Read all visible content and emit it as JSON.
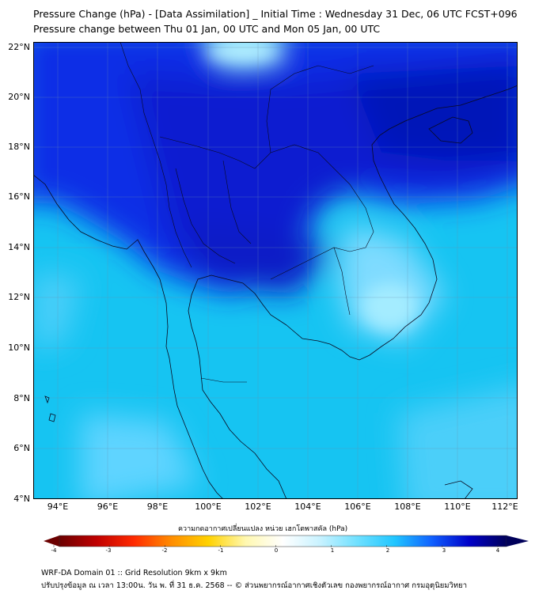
{
  "title_line1": "Pressure Change (hPa) - [Data Assimilation] _ Initial Time : Wednesday 31 Dec, 06 UTC FCST+096",
  "title_line2": "Pressure change between Thu 01 Jan, 00 UTC and Mon 05 Jan, 00 UTC",
  "lat_labels": [
    "22°N",
    "20°N",
    "18°N",
    "16°N",
    "14°N",
    "12°N",
    "10°N",
    "8°N",
    "6°N",
    "4°N"
  ],
  "lon_labels": [
    "94°E",
    "96°E",
    "98°E",
    "100°E",
    "102°E",
    "104°E",
    "106°E",
    "108°E",
    "110°E",
    "112°E"
  ],
  "colorbar": {
    "label": "ความกดอากาศเปลี่ยนแปลง หน่วย เฮกโตพาสคัล (hPa)",
    "ticks": [
      "-4",
      "-3",
      "-2",
      "-1",
      "0",
      "1",
      "2",
      "3",
      "4"
    ],
    "min": -4,
    "max": 4,
    "colors": [
      "#6b0000",
      "#c00000",
      "#ff2a00",
      "#ff8c00",
      "#ffd200",
      "#fff8b0",
      "#ffffff",
      "#c8f2ff",
      "#6fe0ff",
      "#20c6ff",
      "#1060ff",
      "#0000c8",
      "#00005a"
    ]
  },
  "footer_line1": "WRF-DA Domain 01 :: Grid Resolution 9km x 9km",
  "footer_line2": "ปรับปรุงข้อมูล ณ เวลา 13:00น. วัน พ. ที่ 31 ธ.ค. 2568 -- © ส่วนพยากรณ์อากาศเชิงตัวเลข กองพยากรณ์อากาศ กรมอุตุนิยมวิทยา"
}
